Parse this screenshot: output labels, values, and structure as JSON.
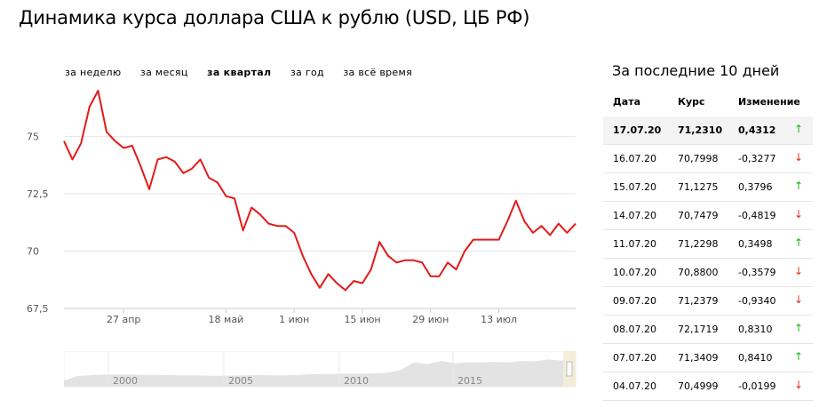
{
  "page": {
    "title": "Динамика курса доллара США к рублю (USD, ЦБ РФ)"
  },
  "periods": [
    {
      "label": "за неделю",
      "active": false
    },
    {
      "label": "за месяц",
      "active": false
    },
    {
      "label": "за квартал",
      "active": true
    },
    {
      "label": "за год",
      "active": false
    },
    {
      "label": "за всё время",
      "active": false
    }
  ],
  "table": {
    "title": "За последние 10 дней",
    "headers": {
      "date": "Дата",
      "rate": "Курс",
      "change": "Изменение"
    },
    "rows": [
      {
        "date": "17.07.20",
        "rate": "71,2310",
        "change": "0,4312",
        "dir": "up"
      },
      {
        "date": "16.07.20",
        "rate": "70,7998",
        "change": "-0,3277",
        "dir": "down"
      },
      {
        "date": "15.07.20",
        "rate": "71,1275",
        "change": "0,3796",
        "dir": "up"
      },
      {
        "date": "14.07.20",
        "rate": "70,7479",
        "change": "-0,4819",
        "dir": "down"
      },
      {
        "date": "11.07.20",
        "rate": "71,2298",
        "change": "0,3498",
        "dir": "up"
      },
      {
        "date": "10.07.20",
        "rate": "70,8800",
        "change": "-0,3579",
        "dir": "down"
      },
      {
        "date": "09.07.20",
        "rate": "71,2379",
        "change": "-0,9340",
        "dir": "down"
      },
      {
        "date": "08.07.20",
        "rate": "72,1719",
        "change": "0,8310",
        "dir": "up"
      },
      {
        "date": "07.07.20",
        "rate": "71,3409",
        "change": "0,8410",
        "dir": "up"
      },
      {
        "date": "04.07.20",
        "rate": "70,4999",
        "change": "-0,0199",
        "dir": "down"
      }
    ],
    "arrows": {
      "up": "↑",
      "down": "↓"
    }
  },
  "colors": {
    "line": "#e41a1a",
    "up": "#1bb31b",
    "down": "#e0321f",
    "grid": "#e5e5e5",
    "nav_fill": "#e3e3e3",
    "nav_window": "#f3ecd7"
  },
  "chart_data": {
    "type": "line",
    "ylim": [
      67.5,
      77
    ],
    "y_ticks": [
      67.5,
      70,
      72.5,
      75
    ],
    "y_tick_labels": [
      "67,5",
      "70",
      "72,5",
      "75"
    ],
    "x_ticks": [
      "27 апр",
      "18 май",
      "1 июн",
      "15 июн",
      "29 июн",
      "13 июл"
    ],
    "x_tick_positions": [
      7,
      19,
      27,
      35,
      43,
      51
    ],
    "series": [
      {
        "values": [
          74.8,
          74.0,
          74.7,
          76.3,
          77.0,
          75.2,
          74.8,
          74.5,
          74.6,
          73.7,
          72.7,
          74.0,
          74.1,
          73.9,
          73.4,
          73.6,
          74.0,
          73.2,
          73.0,
          72.4,
          72.3,
          70.9,
          71.9,
          71.6,
          71.2,
          71.1,
          71.1,
          70.8,
          69.8,
          69.0,
          68.4,
          69.0,
          68.6,
          68.3,
          68.7,
          68.6,
          69.2,
          70.4,
          69.8,
          69.5,
          69.6,
          69.6,
          69.5,
          68.9,
          68.9,
          69.5,
          69.2,
          70.0,
          70.5,
          70.5,
          70.5,
          70.5,
          71.3,
          72.2,
          71.3,
          70.8,
          71.1,
          70.7,
          71.2,
          70.8,
          71.2
        ]
      }
    ],
    "navigator": {
      "year_labels": [
        "2000",
        "2005",
        "2010",
        "2015"
      ]
    }
  }
}
